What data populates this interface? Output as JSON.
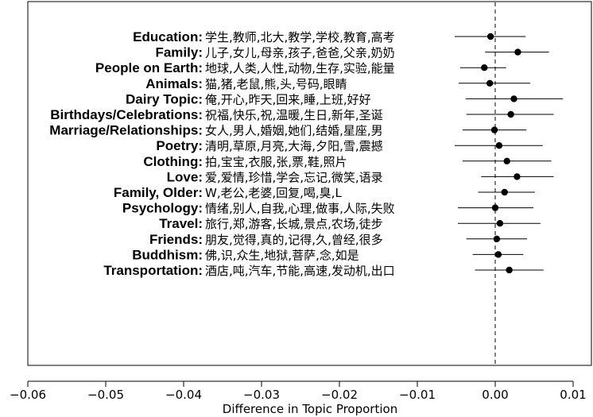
{
  "chart_data": {
    "type": "scatter",
    "subtype": "point-with-error-bars",
    "xlabel": "Difference in Topic Proportion",
    "xlim": [
      -0.06,
      0.01
    ],
    "xticks": [
      -0.06,
      -0.05,
      -0.04,
      -0.03,
      -0.02,
      -0.01,
      0.0,
      0.01
    ],
    "xtick_labels": [
      "−0.06",
      "−0.05",
      "−0.04",
      "−0.03",
      "−0.02",
      "−0.01",
      "0.00",
      "0.01"
    ],
    "reference_line": 0.0,
    "reference_line_style": "dashed",
    "grid": false,
    "points": [
      {
        "topic": "Education:",
        "words": "学生,教师,北大,教学,学校,教育,高考",
        "estimate": -0.0006,
        "lower": -0.0052,
        "upper": 0.0039
      },
      {
        "topic": "Family:",
        "words": "儿子,女儿,母亲,孩子,爸爸,父亲,奶奶",
        "estimate": 0.0029,
        "lower": -0.0013,
        "upper": 0.0069
      },
      {
        "topic": "People on Earth:",
        "words": "地球,人类,人性,动物,生存,实验,能量",
        "estimate": -0.0014,
        "lower": -0.0045,
        "upper": 0.0014
      },
      {
        "topic": "Animals:",
        "words": "猫,猪,老鼠,熊,头,号码,眼睛",
        "estimate": -0.0007,
        "lower": -0.0047,
        "upper": 0.0045
      },
      {
        "topic": "Dairy Topic:",
        "words": "俺,开心,昨天,回来,睡,上班,好好",
        "estimate": 0.0024,
        "lower": -0.0038,
        "upper": 0.0087
      },
      {
        "topic": "Birthdays/Celebrations:",
        "words": "祝福,快乐,祝,温暖,生日,新年,圣诞",
        "estimate": 0.002,
        "lower": -0.0037,
        "upper": 0.0075
      },
      {
        "topic": "Marriage/Relationships:",
        "words": "女人,男人,婚姻,她们,结婚,星座,男",
        "estimate": -0.0001,
        "lower": -0.0042,
        "upper": 0.004
      },
      {
        "topic": "Poetry:",
        "words": "清明,草原,月亮,大海,夕阳,雪,震撼",
        "estimate": 0.0005,
        "lower": -0.0052,
        "upper": 0.0061
      },
      {
        "topic": "Clothing:",
        "words": "拍,宝宝,衣服,张,票,鞋,照片",
        "estimate": 0.0015,
        "lower": -0.0042,
        "upper": 0.0072
      },
      {
        "topic": "Love:",
        "words": "爱,爱情,珍惜,学会,忘记,微笑,语录",
        "estimate": 0.0028,
        "lower": -0.0018,
        "upper": 0.0075
      },
      {
        "topic": "Family, Older:",
        "words": "W,老公,老婆,回复,喝,臭,L",
        "estimate": 0.0012,
        "lower": -0.0022,
        "upper": 0.0051
      },
      {
        "topic": "Psychology:",
        "words": "情绪,别人,自我,心理,做事,人际,失败",
        "estimate": 0.0,
        "lower": -0.0048,
        "upper": 0.0049
      },
      {
        "topic": "Travel:",
        "words": "旅行,郑,游客,长城,景点,农场,徒步",
        "estimate": 0.0006,
        "lower": -0.0048,
        "upper": 0.0058
      },
      {
        "topic": "Friends:",
        "words": "朋友,觉得,真的,记得,久,曾经,很多",
        "estimate": 0.0002,
        "lower": -0.0037,
        "upper": 0.0041
      },
      {
        "topic": "Buddhism:",
        "words": "佛,识,众生,地狱,菩萨,念,如是",
        "estimate": 0.0004,
        "lower": -0.0029,
        "upper": 0.0036
      },
      {
        "topic": "Transportation:",
        "words": "酒店,吨,汽车,节能,高速,发动机,出口",
        "estimate": 0.0018,
        "lower": -0.0026,
        "upper": 0.0062
      }
    ]
  }
}
